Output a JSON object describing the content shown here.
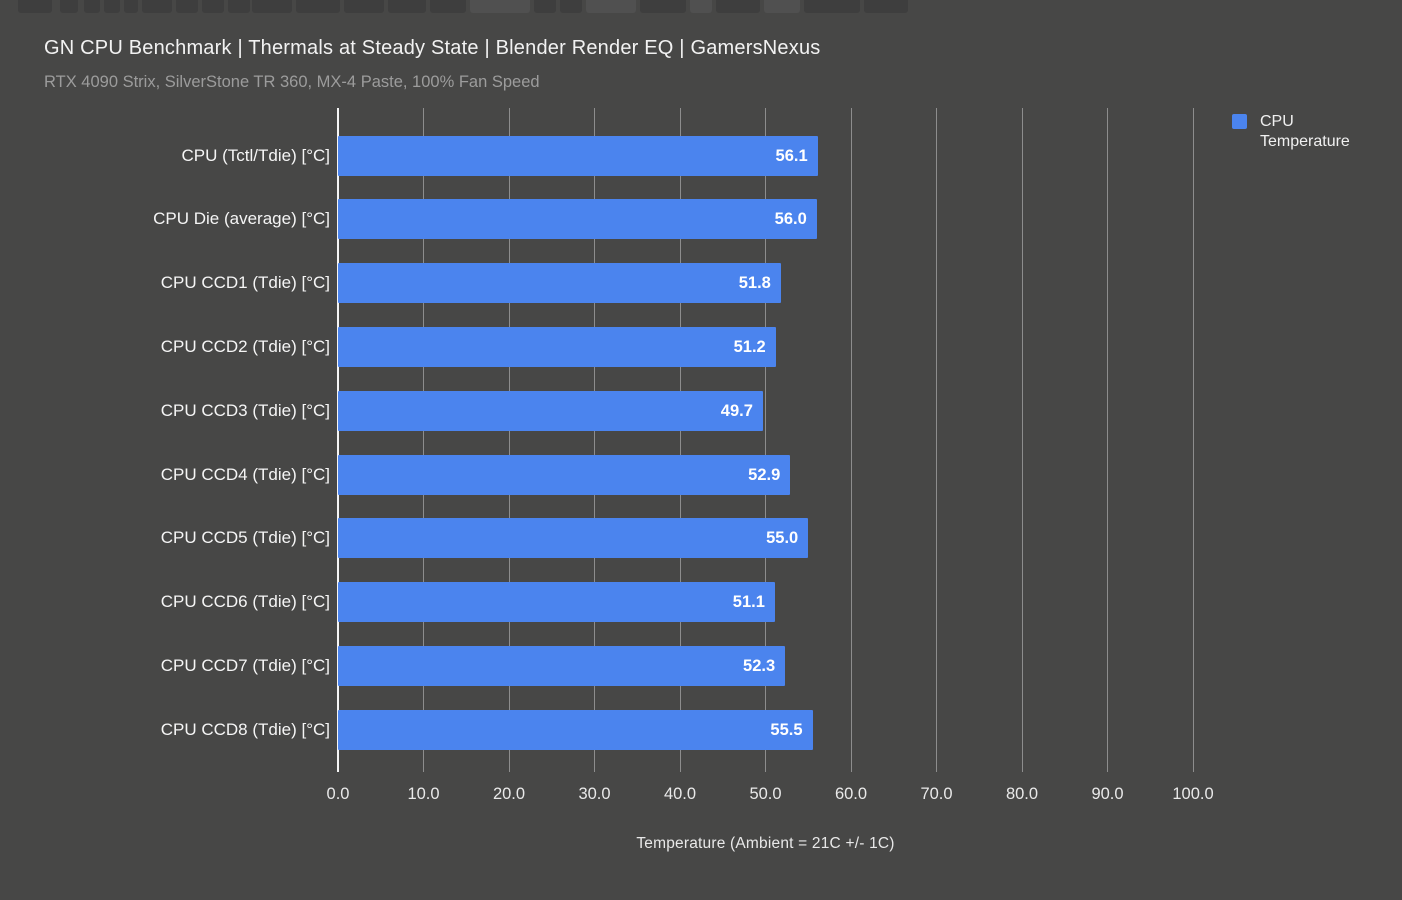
{
  "window": {
    "background": "#474746"
  },
  "chart_data": {
    "type": "bar",
    "orientation": "horizontal",
    "title": "GN CPU Benchmark | Thermals at Steady State | Blender Render EQ | GamersNexus",
    "subtitle": "RTX 4090 Strix, SilverStone TR 360, MX-4 Paste, 100% Fan Speed",
    "categories": [
      "CPU (Tctl/Tdie) [°C]",
      "CPU Die (average) [°C]",
      "CPU CCD1 (Tdie) [°C]",
      "CPU CCD2 (Tdie) [°C]",
      "CPU CCD3 (Tdie) [°C]",
      "CPU CCD4 (Tdie) [°C]",
      "CPU CCD5 (Tdie) [°C]",
      "CPU CCD6 (Tdie) [°C]",
      "CPU CCD7 (Tdie) [°C]",
      "CPU CCD8 (Tdie) [°C]"
    ],
    "series": [
      {
        "name": "CPU Temperature",
        "values": [
          56.1,
          56.0,
          51.8,
          51.2,
          49.7,
          52.9,
          55.0,
          51.1,
          52.3,
          55.5
        ],
        "value_labels": [
          "56.1",
          "56.0",
          "51.8",
          "51.2",
          "49.7",
          "52.9",
          "55.0",
          "51.1",
          "52.3",
          "55.5"
        ],
        "color": "#4b84ee"
      }
    ],
    "xlabel": "Temperature (Ambient = 21C +/- 1C)",
    "xlim": [
      0,
      100
    ],
    "xticks": [
      0,
      10,
      20,
      30,
      40,
      50,
      60,
      70,
      80,
      90,
      100
    ],
    "xtick_labels": [
      "0.0",
      "10.0",
      "20.0",
      "30.0",
      "40.0",
      "50.0",
      "60.0",
      "70.0",
      "80.0",
      "90.0",
      "100.0"
    ],
    "grid": true,
    "legend_position": "top-right",
    "colors": {
      "background": "#474746",
      "bar": "#4b84ee",
      "gridline": "#9a9a9a",
      "axis_line": "#f5f5f5",
      "title_text": "#f2f2f2",
      "subtitle_text": "#9c9c9c",
      "category_text": "#f5f5f5",
      "value_text": "#ffffff",
      "tick_text": "#e9e9e9"
    }
  }
}
